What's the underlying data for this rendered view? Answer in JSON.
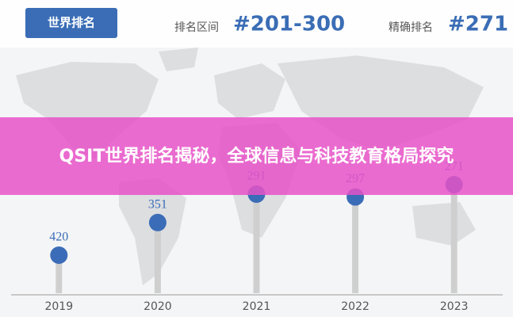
{
  "header": {
    "button": "世界排名",
    "range_label": "排名区间",
    "range": "#201-300",
    "exact_label": "精确排名",
    "exact": "#271"
  },
  "banner": {
    "title": "QSIT世界排名揭秘，全球信息与科技教育格局探究"
  },
  "chart_data": {
    "type": "lollipop",
    "categories": [
      "2019",
      "2020",
      "2021",
      "2022",
      "2023"
    ],
    "values": [
      420,
      351,
      291,
      297,
      271
    ],
    "color": "#3b6cb7"
  }
}
